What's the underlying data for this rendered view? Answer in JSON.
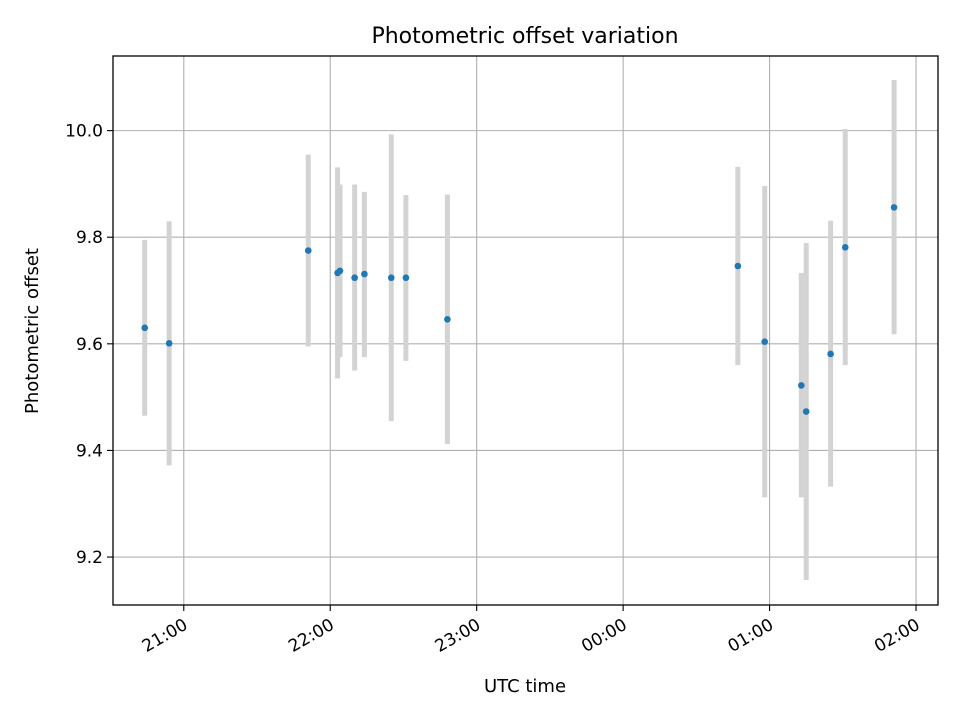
{
  "chart_data": {
    "type": "scatter",
    "title": "Photometric offset variation",
    "xlabel": "UTC time",
    "ylabel": "Photometric offset",
    "grid": true,
    "legend": "none",
    "x_axis_type": "time",
    "xlim": [
      "20:31",
      "02:09"
    ],
    "ylim": [
      9.11,
      10.14
    ],
    "xticks": [
      "21:00",
      "22:00",
      "23:00",
      "00:00",
      "01:00",
      "02:00"
    ],
    "yticks": [
      "9.2",
      "9.4",
      "9.6",
      "9.8",
      "10.0"
    ],
    "errorbar_color": "#d3d3d3",
    "point_color": "#1f77b4",
    "points": [
      {
        "x": "20:44",
        "y": 9.63,
        "ylow": 9.465,
        "yhigh": 9.795
      },
      {
        "x": "20:54",
        "y": 9.601,
        "ylow": 9.372,
        "yhigh": 9.83
      },
      {
        "x": "21:51",
        "y": 9.775,
        "ylow": 9.595,
        "yhigh": 9.955
      },
      {
        "x": "22:03",
        "y": 9.733,
        "ylow": 9.535,
        "yhigh": 9.931
      },
      {
        "x": "22:04",
        "y": 9.737,
        "ylow": 9.575,
        "yhigh": 9.899
      },
      {
        "x": "22:10",
        "y": 9.724,
        "ylow": 9.55,
        "yhigh": 9.899
      },
      {
        "x": "22:14",
        "y": 9.731,
        "ylow": 9.575,
        "yhigh": 9.885
      },
      {
        "x": "22:25",
        "y": 9.724,
        "ylow": 9.455,
        "yhigh": 9.993
      },
      {
        "x": "22:31",
        "y": 9.724,
        "ylow": 9.568,
        "yhigh": 9.879
      },
      {
        "x": "22:48",
        "y": 9.646,
        "ylow": 9.412,
        "yhigh": 9.88
      },
      {
        "x": "00:47",
        "y": 9.746,
        "ylow": 9.56,
        "yhigh": 9.932
      },
      {
        "x": "00:58",
        "y": 9.604,
        "ylow": 9.312,
        "yhigh": 9.896
      },
      {
        "x": "01:13",
        "y": 9.522,
        "ylow": 9.312,
        "yhigh": 9.733
      },
      {
        "x": "01:15",
        "y": 9.473,
        "ylow": 9.157,
        "yhigh": 9.789
      },
      {
        "x": "01:25",
        "y": 9.581,
        "ylow": 9.332,
        "yhigh": 9.831
      },
      {
        "x": "01:31",
        "y": 9.781,
        "ylow": 9.56,
        "yhigh": 10.003
      },
      {
        "x": "01:51",
        "y": 9.856,
        "ylow": 9.618,
        "yhigh": 10.095
      }
    ]
  }
}
